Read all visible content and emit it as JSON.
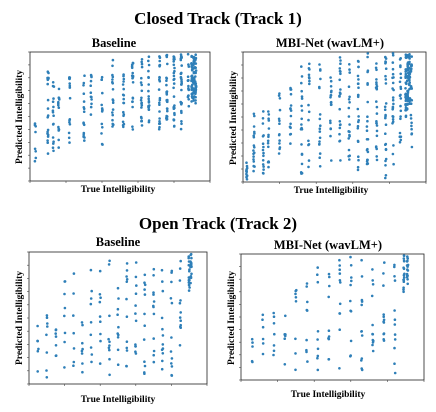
{
  "sections": [
    {
      "title": "Closed Track (Track 1)"
    },
    {
      "title": "Open Track (Track 2)"
    }
  ],
  "marker_color": "#2e7fb8",
  "chart_data": [
    {
      "type": "scatter",
      "section": "Closed Track (Track 1)",
      "title": "Baseline",
      "xlabel": "True Intelligibility",
      "ylabel": "Predicted Intelligibility",
      "xlim": [
        0,
        1
      ],
      "ylim": [
        0,
        1
      ],
      "grid": false,
      "tick_labels": false,
      "density": "dense",
      "columns": [
        {
          "x": 0.03,
          "y": [
            0.15,
            0.45
          ],
          "n": 8
        },
        {
          "x": 0.1,
          "y": [
            0.12,
            0.85
          ],
          "n": 20
        },
        {
          "x": 0.13,
          "y": [
            0.2,
            0.8
          ],
          "n": 16
        },
        {
          "x": 0.16,
          "y": [
            0.25,
            0.75
          ],
          "n": 14
        },
        {
          "x": 0.22,
          "y": [
            0.28,
            0.86
          ],
          "n": 16
        },
        {
          "x": 0.3,
          "y": [
            0.3,
            0.82
          ],
          "n": 16
        },
        {
          "x": 0.34,
          "y": [
            0.35,
            0.88
          ],
          "n": 12
        },
        {
          "x": 0.4,
          "y": [
            0.25,
            0.85
          ],
          "n": 14
        },
        {
          "x": 0.46,
          "y": [
            0.42,
            0.96
          ],
          "n": 18
        },
        {
          "x": 0.52,
          "y": [
            0.4,
            0.9
          ],
          "n": 18
        },
        {
          "x": 0.57,
          "y": [
            0.38,
            0.95
          ],
          "n": 18
        },
        {
          "x": 0.62,
          "y": [
            0.4,
            0.95
          ],
          "n": 20
        },
        {
          "x": 0.66,
          "y": [
            0.45,
            0.97
          ],
          "n": 20
        },
        {
          "x": 0.72,
          "y": [
            0.4,
            0.98
          ],
          "n": 24
        },
        {
          "x": 0.76,
          "y": [
            0.45,
            0.99
          ],
          "n": 26
        },
        {
          "x": 0.8,
          "y": [
            0.42,
            0.99
          ],
          "n": 28
        },
        {
          "x": 0.84,
          "y": [
            0.4,
            0.99
          ],
          "n": 28
        },
        {
          "x": 0.88,
          "y": [
            0.55,
            0.99
          ],
          "n": 16
        },
        {
          "x": 0.9,
          "y": [
            0.6,
            0.98
          ],
          "n": 30
        },
        {
          "x": 0.91,
          "y": [
            0.62,
            0.99
          ],
          "n": 30
        },
        {
          "x": 0.92,
          "y": [
            0.6,
            0.99
          ],
          "n": 30
        }
      ]
    },
    {
      "type": "scatter",
      "section": "Closed Track (Track 1)",
      "title": "MBI-Net (wavLM+)",
      "xlabel": "True Intelligibility",
      "ylabel": "Predicted Intelligibility",
      "xlim": [
        0,
        1
      ],
      "ylim": [
        0,
        1
      ],
      "grid": false,
      "tick_labels": false,
      "density": "dense",
      "columns": [
        {
          "x": 0.02,
          "y": [
            0.02,
            0.15
          ],
          "n": 12
        },
        {
          "x": 0.06,
          "y": [
            0.02,
            0.6
          ],
          "n": 18
        },
        {
          "x": 0.11,
          "y": [
            0.05,
            0.55
          ],
          "n": 16
        },
        {
          "x": 0.14,
          "y": [
            0.02,
            0.6
          ],
          "n": 14
        },
        {
          "x": 0.2,
          "y": [
            0.15,
            0.7
          ],
          "n": 14
        },
        {
          "x": 0.26,
          "y": [
            0.1,
            0.75
          ],
          "n": 16
        },
        {
          "x": 0.32,
          "y": [
            0.05,
            0.9
          ],
          "n": 20
        },
        {
          "x": 0.36,
          "y": [
            0.1,
            0.92
          ],
          "n": 16
        },
        {
          "x": 0.42,
          "y": [
            0.1,
            0.95
          ],
          "n": 18
        },
        {
          "x": 0.48,
          "y": [
            0.15,
            0.95
          ],
          "n": 18
        },
        {
          "x": 0.53,
          "y": [
            0.1,
            0.98
          ],
          "n": 22
        },
        {
          "x": 0.58,
          "y": [
            0.15,
            0.98
          ],
          "n": 20
        },
        {
          "x": 0.63,
          "y": [
            0.05,
            0.98
          ],
          "n": 24
        },
        {
          "x": 0.68,
          "y": [
            0.1,
            0.99
          ],
          "n": 22
        },
        {
          "x": 0.73,
          "y": [
            0.15,
            0.99
          ],
          "n": 24
        },
        {
          "x": 0.78,
          "y": [
            0.02,
            0.99
          ],
          "n": 26
        },
        {
          "x": 0.82,
          "y": [
            0.1,
            0.99
          ],
          "n": 24
        },
        {
          "x": 0.86,
          "y": [
            0.3,
            0.99
          ],
          "n": 22
        },
        {
          "x": 0.89,
          "y": [
            0.5,
            0.99
          ],
          "n": 30
        },
        {
          "x": 0.9,
          "y": [
            0.55,
            0.99
          ],
          "n": 30
        },
        {
          "x": 0.91,
          "y": [
            0.6,
            0.99
          ],
          "n": 30
        },
        {
          "x": 0.92,
          "y": [
            0.2,
            0.99
          ],
          "n": 22
        }
      ]
    },
    {
      "type": "scatter",
      "section": "Open Track (Track 2)",
      "title": "Baseline",
      "xlabel": "True Intelligibility",
      "ylabel": "Predicted Intelligibility",
      "xlim": [
        0,
        1
      ],
      "ylim": [
        0,
        1
      ],
      "grid": false,
      "tick_labels": false,
      "density": "sparse",
      "columns": [
        {
          "x": 0.05,
          "y": [
            0.05,
            0.45
          ],
          "n": 6
        },
        {
          "x": 0.1,
          "y": [
            0.05,
            0.6
          ],
          "n": 8
        },
        {
          "x": 0.15,
          "y": [
            0.1,
            0.5
          ],
          "n": 7
        },
        {
          "x": 0.2,
          "y": [
            0.05,
            0.8
          ],
          "n": 8
        },
        {
          "x": 0.25,
          "y": [
            0.1,
            0.85
          ],
          "n": 7
        },
        {
          "x": 0.3,
          "y": [
            0.05,
            0.55
          ],
          "n": 8
        },
        {
          "x": 0.35,
          "y": [
            0.1,
            0.95
          ],
          "n": 9
        },
        {
          "x": 0.4,
          "y": [
            0.15,
            0.9
          ],
          "n": 9
        },
        {
          "x": 0.45,
          "y": [
            0.05,
            0.95
          ],
          "n": 10
        },
        {
          "x": 0.5,
          "y": [
            0.05,
            0.98
          ],
          "n": 10
        },
        {
          "x": 0.55,
          "y": [
            0.1,
            0.98
          ],
          "n": 12
        },
        {
          "x": 0.6,
          "y": [
            0.05,
            0.95
          ],
          "n": 12
        },
        {
          "x": 0.65,
          "y": [
            0.05,
            0.98
          ],
          "n": 12
        },
        {
          "x": 0.7,
          "y": [
            0.1,
            0.99
          ],
          "n": 12
        },
        {
          "x": 0.75,
          "y": [
            0.1,
            0.99
          ],
          "n": 12
        },
        {
          "x": 0.8,
          "y": [
            0.05,
            0.99
          ],
          "n": 12
        },
        {
          "x": 0.85,
          "y": [
            0.1,
            0.99
          ],
          "n": 12
        },
        {
          "x": 0.9,
          "y": [
            0.7,
            0.99
          ],
          "n": 16
        },
        {
          "x": 0.91,
          "y": [
            0.75,
            0.99
          ],
          "n": 16
        }
      ]
    },
    {
      "type": "scatter",
      "section": "Open Track (Track 2)",
      "title": "MBI-Net (wavLM+)",
      "xlabel": "True Intelligibility",
      "ylabel": "Predicted Intelligibility",
      "xlim": [
        0,
        1
      ],
      "ylim": [
        0,
        1
      ],
      "grid": false,
      "tick_labels": false,
      "density": "sparse",
      "columns": [
        {
          "x": 0.06,
          "y": [
            0.1,
            0.4
          ],
          "n": 5
        },
        {
          "x": 0.12,
          "y": [
            0.1,
            0.55
          ],
          "n": 6
        },
        {
          "x": 0.18,
          "y": [
            0.05,
            0.6
          ],
          "n": 7
        },
        {
          "x": 0.24,
          "y": [
            0.1,
            0.7
          ],
          "n": 7
        },
        {
          "x": 0.3,
          "y": [
            0.05,
            0.75
          ],
          "n": 8
        },
        {
          "x": 0.36,
          "y": [
            0.1,
            0.85
          ],
          "n": 9
        },
        {
          "x": 0.42,
          "y": [
            0.05,
            0.9
          ],
          "n": 9
        },
        {
          "x": 0.48,
          "y": [
            0.1,
            0.95
          ],
          "n": 10
        },
        {
          "x": 0.54,
          "y": [
            0.05,
            0.98
          ],
          "n": 11
        },
        {
          "x": 0.6,
          "y": [
            0.1,
            0.98
          ],
          "n": 11
        },
        {
          "x": 0.66,
          "y": [
            0.05,
            0.99
          ],
          "n": 12
        },
        {
          "x": 0.72,
          "y": [
            0.1,
            0.99
          ],
          "n": 12
        },
        {
          "x": 0.78,
          "y": [
            0.1,
            0.99
          ],
          "n": 12
        },
        {
          "x": 0.84,
          "y": [
            0.05,
            0.99
          ],
          "n": 12
        },
        {
          "x": 0.89,
          "y": [
            0.7,
            0.99
          ],
          "n": 16
        },
        {
          "x": 0.91,
          "y": [
            0.75,
            0.99
          ],
          "n": 16
        }
      ]
    }
  ]
}
